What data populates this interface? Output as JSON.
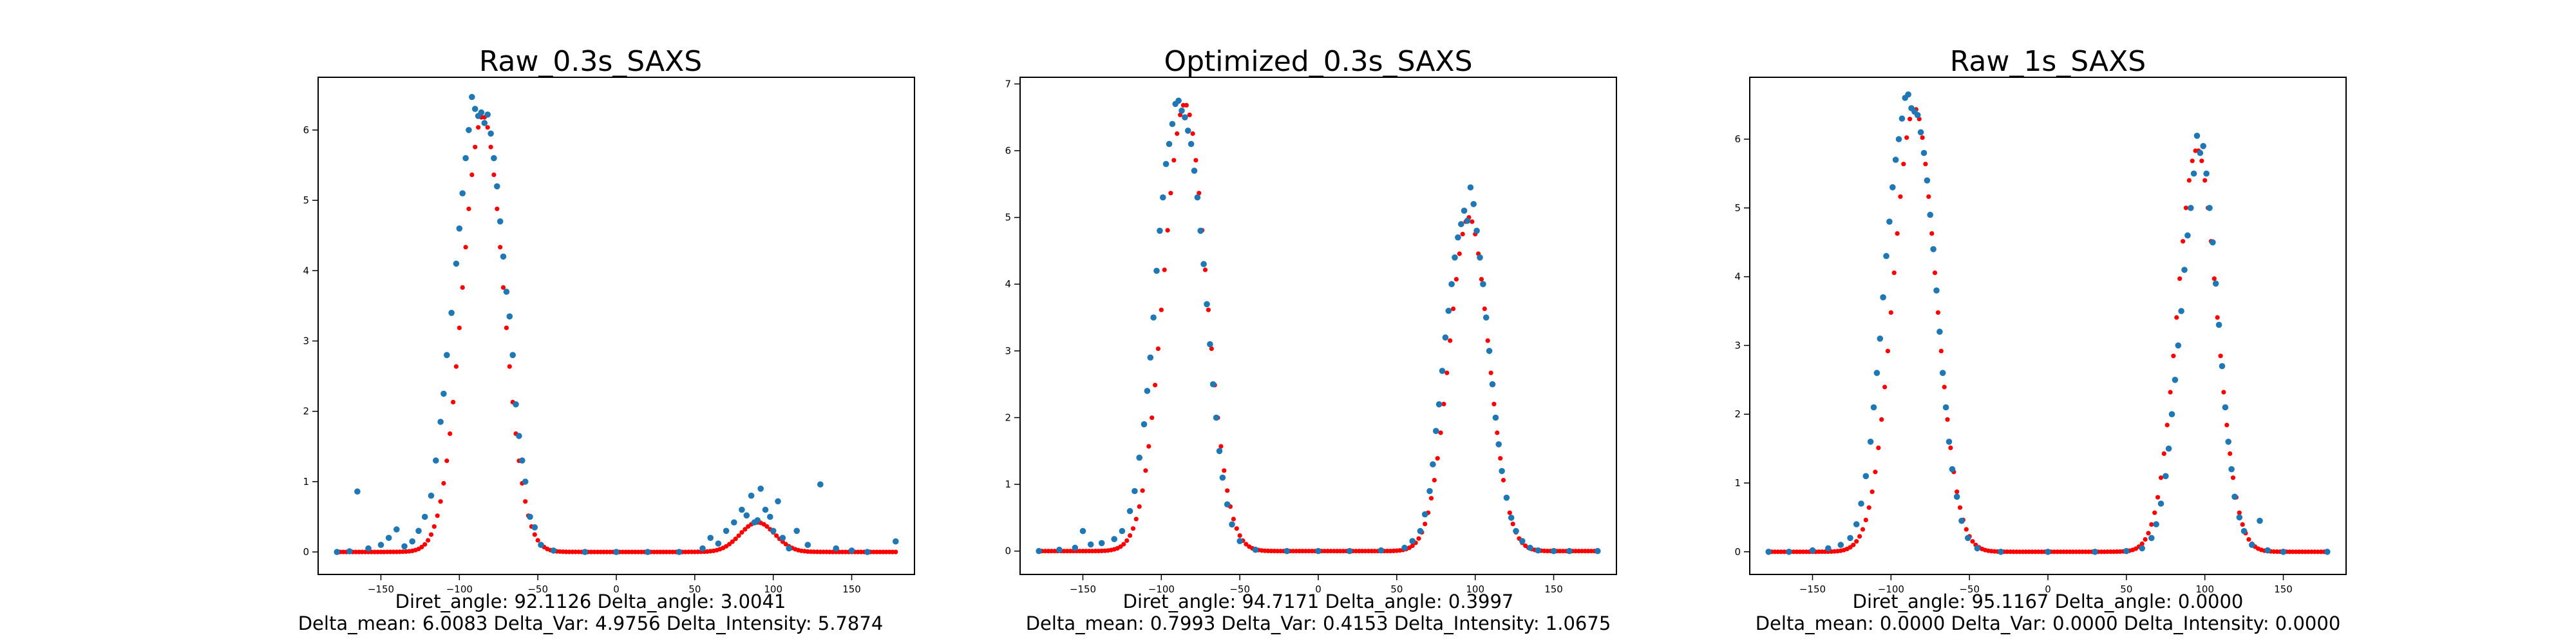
{
  "charts": [
    {
      "title": "Raw_0.3s_SAXS",
      "stats_line1": "Diret_angle: 92.1126 Delta_angle: 3.0041",
      "stats_line2": "Delta_mean: 6.0083 Delta_Var: 4.9756 Delta_Intensity: 5.7874"
    },
    {
      "title": "Optimized_0.3s_SAXS",
      "stats_line1": "Diret_angle: 94.7171 Delta_angle: 0.3997",
      "stats_line2": "Delta_mean: 0.7993 Delta_Var: 0.4153 Delta_Intensity: 1.0675"
    },
    {
      "title": "Raw_1s_SAXS",
      "stats_line1": "Diret_angle: 95.1167 Delta_angle: 0.0000",
      "stats_line2": "Delta_mean: 0.0000 Delta_Var: 0.0000 Delta_Intensity: 0.0000"
    }
  ],
  "colors": {
    "scatter": "#1f77b4",
    "fit": "#ff0000",
    "axes": "#000000"
  },
  "chart_data": [
    {
      "type": "scatter",
      "title": "Raw_0.3s_SAXS",
      "xlim": [
        -190,
        190
      ],
      "ylim": [
        -0.32,
        6.75
      ],
      "x_ticks": [
        -150,
        -100,
        -50,
        0,
        50,
        100,
        150
      ],
      "y_ticks": [
        0,
        1,
        2,
        3,
        4,
        5,
        6
      ],
      "fit": {
        "name": "fit",
        "x_range": [
          -178,
          178
        ],
        "step": 2,
        "peaks": [
          {
            "mu": -85,
            "sigma": 13,
            "amp": 6.2
          },
          {
            "mu": 90,
            "sigma": 11,
            "amp": 0.42
          }
        ]
      },
      "series": [
        {
          "name": "data",
          "points": [
            [
              -178,
              0
            ],
            [
              -170,
              0.01
            ],
            [
              -165,
              0.86
            ],
            [
              -158,
              0.05
            ],
            [
              -150,
              0.1
            ],
            [
              -145,
              0.2
            ],
            [
              -140,
              0.32
            ],
            [
              -135,
              0.08
            ],
            [
              -130,
              0.15
            ],
            [
              -126,
              0.3
            ],
            [
              -122,
              0.5
            ],
            [
              -118,
              0.8
            ],
            [
              -115,
              1.3
            ],
            [
              -112,
              1.85
            ],
            [
              -110,
              2.25
            ],
            [
              -108,
              2.8
            ],
            [
              -105,
              3.4
            ],
            [
              -102,
              4.1
            ],
            [
              -100,
              4.6
            ],
            [
              -98,
              5.1
            ],
            [
              -96,
              5.6
            ],
            [
              -94,
              6.0
            ],
            [
              -92,
              6.47
            ],
            [
              -90,
              6.3
            ],
            [
              -88,
              6.2
            ],
            [
              -86,
              6.25
            ],
            [
              -84,
              6.1
            ],
            [
              -82,
              6.22
            ],
            [
              -80,
              5.95
            ],
            [
              -78,
              5.6
            ],
            [
              -76,
              5.2
            ],
            [
              -74,
              4.7
            ],
            [
              -72,
              4.2
            ],
            [
              -70,
              3.7
            ],
            [
              -68,
              3.35
            ],
            [
              -66,
              2.8
            ],
            [
              -64,
              2.1
            ],
            [
              -62,
              1.65
            ],
            [
              -60,
              1.3
            ],
            [
              -58,
              1.0
            ],
            [
              -55,
              0.5
            ],
            [
              -52,
              0.35
            ],
            [
              -48,
              0.1
            ],
            [
              -40,
              0.02
            ],
            [
              -20,
              0
            ],
            [
              0,
              0
            ],
            [
              20,
              0
            ],
            [
              40,
              0
            ],
            [
              55,
              0.05
            ],
            [
              60,
              0.2
            ],
            [
              65,
              0.12
            ],
            [
              70,
              0.3
            ],
            [
              75,
              0.42
            ],
            [
              80,
              0.6
            ],
            [
              83,
              0.52
            ],
            [
              86,
              0.8
            ],
            [
              88,
              0.42
            ],
            [
              90,
              0.45
            ],
            [
              92,
              0.9
            ],
            [
              95,
              0.6
            ],
            [
              98,
              0.5
            ],
            [
              100,
              0.3
            ],
            [
              103,
              0.72
            ],
            [
              106,
              0.2
            ],
            [
              110,
              0.05
            ],
            [
              115,
              0.3
            ],
            [
              122,
              0.1
            ],
            [
              130,
              0.96
            ],
            [
              140,
              0.05
            ],
            [
              150,
              0.02
            ],
            [
              160,
              0
            ],
            [
              178,
              0.15
            ]
          ]
        }
      ]
    },
    {
      "type": "scatter",
      "title": "Optimized_0.3s_SAXS",
      "xlim": [
        -190,
        190
      ],
      "ylim": [
        -0.35,
        7.1
      ],
      "x_ticks": [
        -150,
        -100,
        -50,
        0,
        50,
        100,
        150
      ],
      "y_ticks": [
        0,
        1,
        2,
        3,
        4,
        5,
        6,
        7
      ],
      "fit": {
        "name": "fit",
        "x_range": [
          -178,
          178
        ],
        "step": 2,
        "peaks": [
          {
            "mu": -85,
            "sigma": 13.5,
            "amp": 6.7
          },
          {
            "mu": 96,
            "sigma": 12.5,
            "amp": 5.0
          }
        ]
      },
      "series": [
        {
          "name": "data",
          "points": [
            [
              -178,
              0
            ],
            [
              -165,
              0.02
            ],
            [
              -155,
              0.05
            ],
            [
              -150,
              0.3
            ],
            [
              -145,
              0.1
            ],
            [
              -138,
              0.12
            ],
            [
              -130,
              0.18
            ],
            [
              -125,
              0.3
            ],
            [
              -120,
              0.6
            ],
            [
              -117,
              0.9
            ],
            [
              -114,
              1.4
            ],
            [
              -111,
              1.9
            ],
            [
              -109,
              2.4
            ],
            [
              -107,
              2.9
            ],
            [
              -105,
              3.5
            ],
            [
              -103,
              4.2
            ],
            [
              -101,
              4.8
            ],
            [
              -99,
              5.3
            ],
            [
              -97,
              5.8
            ],
            [
              -95,
              6.1
            ],
            [
              -93,
              6.4
            ],
            [
              -91,
              6.7
            ],
            [
              -89,
              6.75
            ],
            [
              -87,
              6.6
            ],
            [
              -85,
              6.5
            ],
            [
              -83,
              6.3
            ],
            [
              -81,
              6.1
            ],
            [
              -79,
              5.7
            ],
            [
              -77,
              5.3
            ],
            [
              -75,
              4.8
            ],
            [
              -73,
              4.3
            ],
            [
              -71,
              3.7
            ],
            [
              -69,
              3.1
            ],
            [
              -67,
              2.5
            ],
            [
              -65,
              2.0
            ],
            [
              -63,
              1.5
            ],
            [
              -61,
              1.1
            ],
            [
              -58,
              0.7
            ],
            [
              -55,
              0.4
            ],
            [
              -50,
              0.15
            ],
            [
              -40,
              0.02
            ],
            [
              -20,
              0
            ],
            [
              0,
              0
            ],
            [
              20,
              0
            ],
            [
              40,
              0.01
            ],
            [
              55,
              0.05
            ],
            [
              60,
              0.15
            ],
            [
              65,
              0.3
            ],
            [
              68,
              0.55
            ],
            [
              71,
              0.9
            ],
            [
              73,
              1.3
            ],
            [
              75,
              1.8
            ],
            [
              77,
              2.2
            ],
            [
              79,
              2.7
            ],
            [
              81,
              3.2
            ],
            [
              83,
              3.6
            ],
            [
              85,
              4.0
            ],
            [
              87,
              4.4
            ],
            [
              89,
              4.7
            ],
            [
              91,
              4.9
            ],
            [
              93,
              5.1
            ],
            [
              95,
              4.95
            ],
            [
              97,
              5.45
            ],
            [
              99,
              5.2
            ],
            [
              101,
              4.8
            ],
            [
              103,
              4.4
            ],
            [
              105,
              4.0
            ],
            [
              107,
              3.5
            ],
            [
              109,
              3.0
            ],
            [
              111,
              2.5
            ],
            [
              113,
              2.0
            ],
            [
              115,
              1.6
            ],
            [
              117,
              1.2
            ],
            [
              120,
              0.8
            ],
            [
              123,
              0.5
            ],
            [
              126,
              0.3
            ],
            [
              130,
              0.15
            ],
            [
              135,
              0.05
            ],
            [
              140,
              0.01
            ],
            [
              150,
              0
            ],
            [
              160,
              0
            ],
            [
              178,
              0
            ]
          ]
        }
      ]
    },
    {
      "type": "scatter",
      "title": "Raw_1s_SAXS",
      "xlim": [
        -190,
        190
      ],
      "ylim": [
        -0.33,
        6.9
      ],
      "x_ticks": [
        -150,
        -100,
        -50,
        0,
        50,
        100,
        150
      ],
      "y_ticks": [
        0,
        1,
        2,
        3,
        4,
        5,
        6
      ],
      "fit": {
        "name": "fit",
        "x_range": [
          -178,
          178
        ],
        "step": 2,
        "peaks": [
          {
            "mu": -85,
            "sigma": 13.5,
            "amp": 6.45
          },
          {
            "mu": 95,
            "sigma": 12.5,
            "amp": 5.85
          }
        ]
      },
      "series": [
        {
          "name": "data",
          "points": [
            [
              -178,
              0
            ],
            [
              -165,
              0
            ],
            [
              -150,
              0.02
            ],
            [
              -140,
              0.05
            ],
            [
              -132,
              0.1
            ],
            [
              -126,
              0.2
            ],
            [
              -122,
              0.4
            ],
            [
              -119,
              0.7
            ],
            [
              -116,
              1.1
            ],
            [
              -113,
              1.6
            ],
            [
              -111,
              2.1
            ],
            [
              -109,
              2.6
            ],
            [
              -107,
              3.1
            ],
            [
              -105,
              3.7
            ],
            [
              -103,
              4.3
            ],
            [
              -101,
              4.8
            ],
            [
              -99,
              5.3
            ],
            [
              -97,
              5.7
            ],
            [
              -95,
              6.0
            ],
            [
              -93,
              6.3
            ],
            [
              -91,
              6.6
            ],
            [
              -89,
              6.65
            ],
            [
              -87,
              6.45
            ],
            [
              -85,
              6.4
            ],
            [
              -83,
              6.35
            ],
            [
              -81,
              6.1
            ],
            [
              -79,
              5.8
            ],
            [
              -77,
              5.4
            ],
            [
              -75,
              4.9
            ],
            [
              -73,
              4.4
            ],
            [
              -71,
              3.8
            ],
            [
              -69,
              3.2
            ],
            [
              -67,
              2.6
            ],
            [
              -65,
              2.1
            ],
            [
              -63,
              1.6
            ],
            [
              -61,
              1.2
            ],
            [
              -58,
              0.8
            ],
            [
              -55,
              0.45
            ],
            [
              -51,
              0.2
            ],
            [
              -45,
              0.05
            ],
            [
              -30,
              0
            ],
            [
              0,
              0
            ],
            [
              30,
              0
            ],
            [
              50,
              0.01
            ],
            [
              60,
              0.05
            ],
            [
              66,
              0.2
            ],
            [
              69,
              0.4
            ],
            [
              72,
              0.7
            ],
            [
              75,
              1.1
            ],
            [
              77,
              1.5
            ],
            [
              79,
              2.0
            ],
            [
              81,
              2.5
            ],
            [
              83,
              3.0
            ],
            [
              85,
              3.5
            ],
            [
              87,
              4.1
            ],
            [
              89,
              4.6
            ],
            [
              91,
              5.0
            ],
            [
              93,
              5.5
            ],
            [
              95,
              6.05
            ],
            [
              97,
              5.8
            ],
            [
              99,
              5.9
            ],
            [
              101,
              5.5
            ],
            [
              103,
              5.0
            ],
            [
              105,
              4.5
            ],
            [
              107,
              3.9
            ],
            [
              109,
              3.3
            ],
            [
              111,
              2.7
            ],
            [
              113,
              2.1
            ],
            [
              115,
              1.6
            ],
            [
              117,
              1.2
            ],
            [
              119,
              0.8
            ],
            [
              122,
              0.5
            ],
            [
              125,
              0.3
            ],
            [
              130,
              0.1
            ],
            [
              135,
              0.45
            ],
            [
              140,
              0.02
            ],
            [
              150,
              0
            ],
            [
              178,
              0
            ]
          ]
        }
      ]
    }
  ]
}
